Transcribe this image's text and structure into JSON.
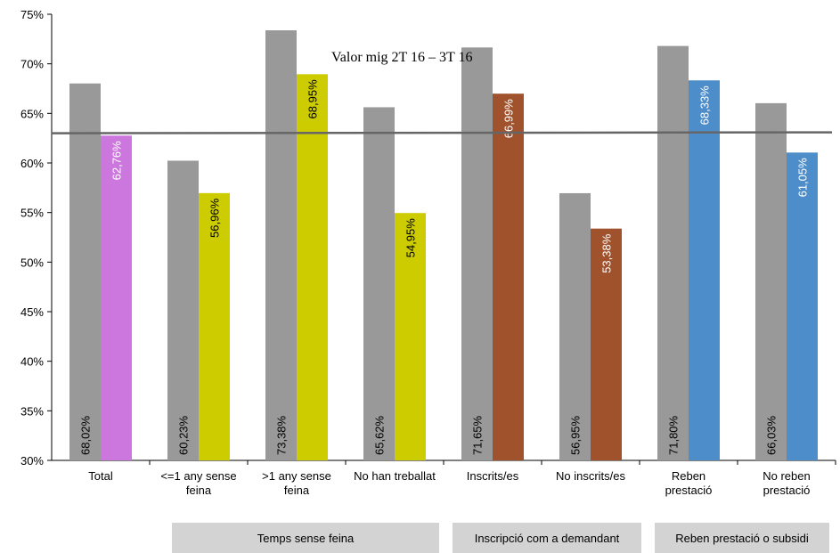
{
  "chart_data": {
    "type": "bar",
    "categories": [
      [
        "Total"
      ],
      [
        "<=1 any sense",
        "feina"
      ],
      [
        ">1 any sense",
        "feina"
      ],
      [
        "No han treballat"
      ],
      [
        "Inscrits/es"
      ],
      [
        "No inscrits/es"
      ],
      [
        "Reben",
        "prestació"
      ],
      [
        "No reben",
        "prestació"
      ]
    ],
    "series": [
      {
        "values": [
          68.02,
          60.23,
          73.38,
          65.62,
          71.65,
          56.95,
          71.8,
          66.03
        ],
        "labels": [
          "68,02%",
          "60,23%",
          "73,38%",
          "65,62%",
          "71,65%",
          "56,95%",
          "71,80%",
          "66,03%"
        ],
        "color": "#999999"
      },
      {
        "values": [
          62.76,
          56.96,
          68.95,
          54.95,
          66.99,
          53.38,
          68.33,
          61.05
        ],
        "labels": [
          "62,76%",
          "56,96%",
          "68,95%",
          "54,95%",
          "66,99%",
          "53,38%",
          "68,33%",
          "61,05%"
        ],
        "colors": [
          "#cc77dd",
          "#cccc00",
          "#cccc00",
          "#cccc00",
          "#a0522d",
          "#a0522d",
          "#4d8dc9",
          "#4d8dc9"
        ]
      }
    ],
    "reference_line": {
      "value": 63.0,
      "label": "Valor mig 2T 16 – 3T 16",
      "color": "#666666"
    },
    "ylim": [
      30,
      75
    ],
    "yticks": [
      "30%",
      "35%",
      "40%",
      "45%",
      "50%",
      "55%",
      "60%",
      "65%",
      "70%",
      "75%"
    ],
    "grid": false,
    "groups": [
      {
        "label": "Temps sense feina",
        "categories": [
          1,
          2,
          3
        ]
      },
      {
        "label": "Inscripció com a demandant",
        "categories": [
          4,
          5
        ]
      },
      {
        "label": "Reben prestació o subsidi",
        "categories": [
          6,
          7
        ]
      }
    ]
  }
}
